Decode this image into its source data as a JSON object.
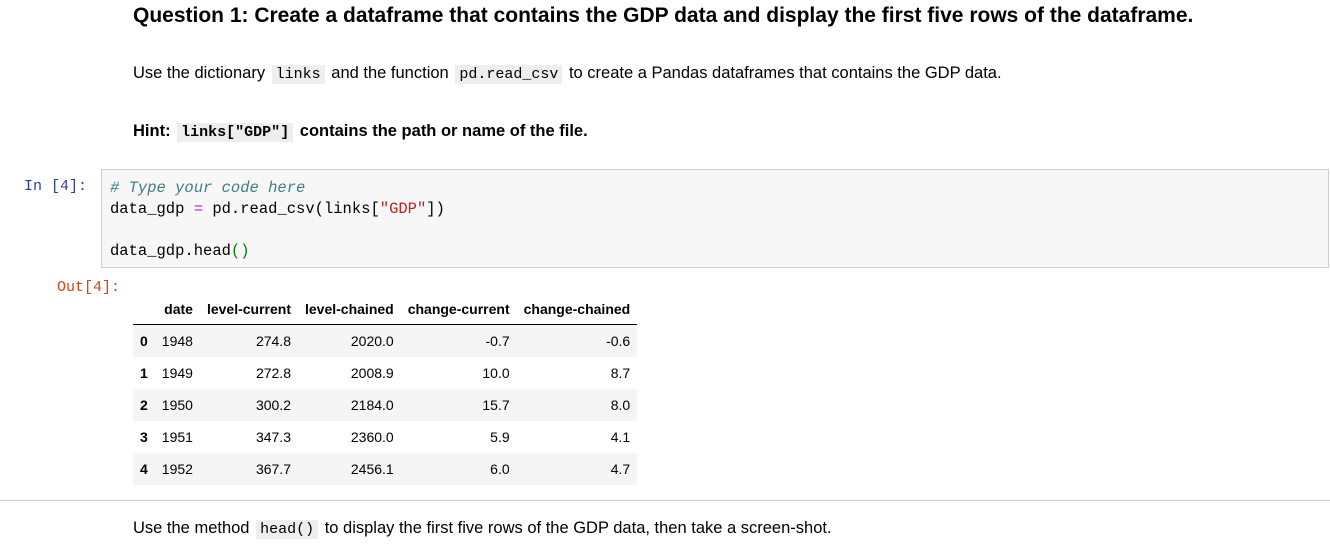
{
  "question": {
    "title": "Question 1: Create a dataframe that contains the GDP data and display the first five rows of the dataframe."
  },
  "instruction": {
    "part1": "Use the dictionary",
    "code1": "links",
    "part2": "and the function",
    "code2": "pd.read_csv",
    "part3": "to create a Pandas dataframes that contains the GDP data."
  },
  "hint": {
    "label": "Hint:",
    "code": "links[\"GDP\"]",
    "text": "contains the path or name of the file."
  },
  "cell": {
    "in_prompt": "In  [4]:",
    "out_prompt": "Out[4]:",
    "comment": "# Type your code here",
    "line2_a": "data_gdp ",
    "line2_op": "=",
    "line2_b": " pd.read_csv(links[",
    "line2_str": "\"GDP\"",
    "line2_c": "])",
    "line3_a": "data_gdp.head",
    "line3_paren": "()"
  },
  "table": {
    "columns": [
      "",
      "date",
      "level-current",
      "level-chained",
      "change-current",
      "change-chained"
    ],
    "rows": [
      [
        "0",
        "1948",
        "274.8",
        "2020.0",
        "-0.7",
        "-0.6"
      ],
      [
        "1",
        "1949",
        "272.8",
        "2008.9",
        "10.0",
        "8.7"
      ],
      [
        "2",
        "1950",
        "300.2",
        "2184.0",
        "15.7",
        "8.0"
      ],
      [
        "3",
        "1951",
        "347.3",
        "2360.0",
        "5.9",
        "4.1"
      ],
      [
        "4",
        "1952",
        "367.7",
        "2456.1",
        "6.0",
        "4.7"
      ]
    ]
  },
  "footer": {
    "part1": "Use the method",
    "code": "head()",
    "part2": "to display the first five rows of the GDP data, then take a screen-shot."
  }
}
